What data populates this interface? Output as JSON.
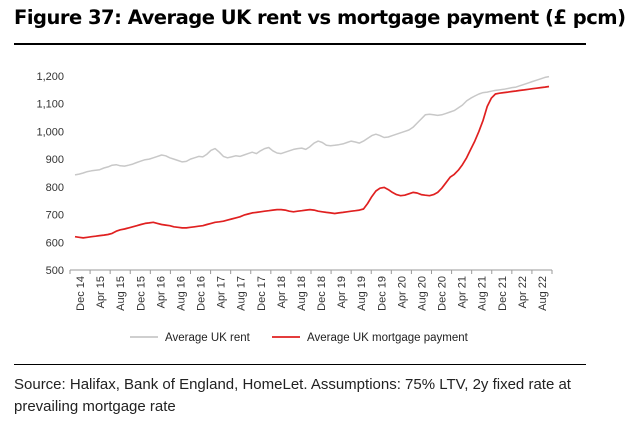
{
  "title": "Figure 37: Average UK rent vs mortgage payment (£ pcm)",
  "source": "Source: Halifax, Bank of England, HomeLet. Assumptions: 75% LTV, 2y fixed rate at prevailing mortgage rate",
  "chart_data": {
    "type": "line",
    "ylim": [
      500,
      1200
    ],
    "yticks": [
      500,
      600,
      700,
      800,
      900,
      1000,
      1100,
      1200
    ],
    "ytick_labels": [
      "500",
      "600",
      "700",
      "800",
      "900",
      "1,000",
      "1,100",
      "1,200"
    ],
    "xtick_labels": [
      "Dec 14",
      "Apr 15",
      "Aug 15",
      "Dec 15",
      "Apr 16",
      "Aug 16",
      "Dec 16",
      "Apr 17",
      "Aug 17",
      "Dec 17",
      "Apr 18",
      "Aug 18",
      "Dec 18",
      "Apr 19",
      "Aug 19",
      "Dec 19",
      "Apr 20",
      "Aug 20",
      "Dec 20",
      "Apr 21",
      "Aug 21",
      "Dec 21",
      "Apr 22",
      "Aug 22"
    ],
    "x_start": "Dec 14",
    "x_end": "Sep 22",
    "grid": false,
    "legend_position": "bottom",
    "series": [
      {
        "name": "Average UK rent",
        "color": "#c8c8c8",
        "values": [
          843,
          846,
          850,
          855,
          858,
          860,
          862,
          868,
          872,
          878,
          880,
          876,
          875,
          878,
          882,
          888,
          893,
          898,
          900,
          905,
          910,
          915,
          912,
          905,
          900,
          895,
          890,
          892,
          900,
          905,
          910,
          908,
          918,
          932,
          938,
          925,
          910,
          905,
          908,
          912,
          910,
          915,
          920,
          925,
          920,
          930,
          938,
          942,
          930,
          922,
          920,
          925,
          930,
          935,
          938,
          940,
          935,
          945,
          958,
          965,
          960,
          950,
          948,
          950,
          952,
          955,
          960,
          965,
          962,
          958,
          965,
          975,
          985,
          990,
          985,
          978,
          980,
          985,
          990,
          995,
          1000,
          1005,
          1015,
          1030,
          1045,
          1060,
          1062,
          1060,
          1058,
          1060,
          1065,
          1070,
          1075,
          1085,
          1095,
          1110,
          1120,
          1128,
          1135,
          1140,
          1142,
          1145,
          1148,
          1150,
          1152,
          1155,
          1158,
          1160,
          1165,
          1170,
          1175,
          1180,
          1185,
          1190,
          1195,
          1198
        ]
      },
      {
        "name": "Average UK mortgage payment",
        "color": "#e02020",
        "values": [
          620,
          618,
          616,
          618,
          620,
          622,
          624,
          626,
          628,
          632,
          640,
          645,
          648,
          652,
          656,
          660,
          664,
          668,
          670,
          672,
          668,
          664,
          662,
          660,
          656,
          654,
          652,
          652,
          654,
          656,
          658,
          660,
          664,
          668,
          672,
          674,
          676,
          680,
          684,
          688,
          692,
          698,
          702,
          706,
          708,
          710,
          712,
          714,
          716,
          718,
          718,
          716,
          712,
          710,
          712,
          714,
          716,
          718,
          716,
          712,
          710,
          708,
          706,
          704,
          706,
          708,
          710,
          712,
          714,
          716,
          720,
          740,
          765,
          785,
          795,
          798,
          790,
          780,
          772,
          768,
          770,
          775,
          780,
          778,
          772,
          770,
          768,
          772,
          780,
          795,
          815,
          835,
          845,
          860,
          880,
          905,
          935,
          965,
          1000,
          1040,
          1090,
          1120,
          1135,
          1138,
          1140,
          1142,
          1144,
          1146,
          1148,
          1150,
          1152,
          1154,
          1156,
          1158,
          1160,
          1162
        ]
      }
    ]
  }
}
